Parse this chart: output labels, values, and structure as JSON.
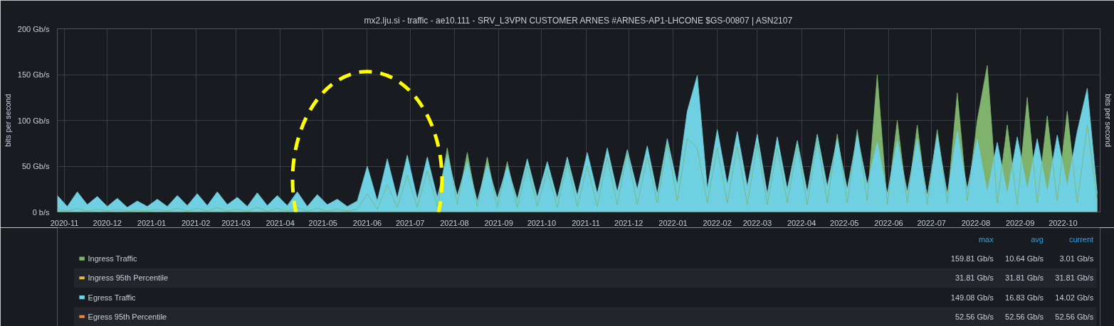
{
  "chart_data": {
    "type": "area",
    "title": "mx2.lju.si - traffic - ae10.111 - SRV_L3VPN CUSTOMER ARNES #ARNES-AP1-LHCONE $GS-00807 | ASN2107",
    "ylabel": "bits per second",
    "y2label": "bits per second",
    "x": [
      "2020-10-27",
      "2020-11-03",
      "2020-11-10",
      "2020-11-17",
      "2020-11-24",
      "2020-12-01",
      "2020-12-08",
      "2020-12-15",
      "2020-12-22",
      "2020-12-29",
      "2021-01-05",
      "2021-01-12",
      "2021-01-19",
      "2021-01-26",
      "2021-02-02",
      "2021-02-09",
      "2021-02-16",
      "2021-02-23",
      "2021-03-02",
      "2021-03-09",
      "2021-03-16",
      "2021-03-23",
      "2021-03-30",
      "2021-04-06",
      "2021-04-13",
      "2021-04-20",
      "2021-04-27",
      "2021-05-04",
      "2021-05-11",
      "2021-05-18",
      "2021-05-25",
      "2021-06-01",
      "2021-06-08",
      "2021-06-15",
      "2021-06-22",
      "2021-06-29",
      "2021-07-06",
      "2021-07-13",
      "2021-07-20",
      "2021-07-27",
      "2021-08-03",
      "2021-08-10",
      "2021-08-17",
      "2021-08-24",
      "2021-08-31",
      "2021-09-07",
      "2021-09-14",
      "2021-09-21",
      "2021-09-28",
      "2021-10-05",
      "2021-10-12",
      "2021-10-19",
      "2021-10-26",
      "2021-11-02",
      "2021-11-09",
      "2021-11-16",
      "2021-11-23",
      "2021-11-30",
      "2021-12-07",
      "2021-12-14",
      "2021-12-21",
      "2021-12-28",
      "2022-01-04",
      "2022-01-11",
      "2022-01-18",
      "2022-01-25",
      "2022-02-01",
      "2022-02-08",
      "2022-02-15",
      "2022-02-22",
      "2022-03-01",
      "2022-03-08",
      "2022-03-15",
      "2022-03-22",
      "2022-03-29",
      "2022-04-05",
      "2022-04-12",
      "2022-04-19",
      "2022-04-26",
      "2022-05-03",
      "2022-05-10",
      "2022-05-17",
      "2022-05-24",
      "2022-05-31",
      "2022-06-07",
      "2022-06-14",
      "2022-06-21",
      "2022-06-28",
      "2022-07-05",
      "2022-07-12",
      "2022-07-19",
      "2022-07-26",
      "2022-08-02",
      "2022-08-09",
      "2022-08-16",
      "2022-08-23",
      "2022-08-30",
      "2022-09-06",
      "2022-09-13",
      "2022-09-20",
      "2022-09-27",
      "2022-10-04",
      "2022-10-11",
      "2022-10-18",
      "2022-10-25"
    ],
    "series": [
      {
        "name": "Ingress Traffic",
        "color": "#7eb26d",
        "values": [
          3,
          1,
          4,
          1,
          3,
          1,
          3,
          1,
          2,
          1,
          3,
          1,
          4,
          1,
          4,
          1,
          5,
          1,
          3,
          1,
          5,
          1,
          4,
          1,
          5,
          1,
          4,
          1,
          3,
          1,
          3,
          20,
          3,
          30,
          5,
          40,
          5,
          45,
          6,
          70,
          8,
          65,
          6,
          60,
          5,
          55,
          5,
          50,
          6,
          45,
          5,
          55,
          6,
          50,
          6,
          60,
          8,
          65,
          8,
          60,
          10,
          75,
          12,
          80,
          70,
          10,
          70,
          10,
          72,
          8,
          75,
          8,
          70,
          10,
          72,
          8,
          80,
          10,
          85,
          10,
          90,
          12,
          150,
          8,
          100,
          10,
          95,
          8,
          90,
          10,
          130,
          12,
          100,
          160,
          10,
          95,
          8,
          125,
          10,
          105,
          12,
          110,
          10,
          95,
          12
        ]
      },
      {
        "name": "Ingress 95th Percentile",
        "color": "#eab839",
        "type": "line",
        "values": [
          null,
          null,
          null,
          null,
          null,
          null,
          null,
          null,
          null,
          null,
          null,
          null,
          null,
          null,
          null,
          null,
          null,
          null,
          null,
          null,
          null,
          null,
          null,
          null,
          null,
          null,
          null,
          null,
          null,
          null,
          null,
          null,
          null,
          null,
          null,
          null,
          null,
          null,
          null,
          null,
          null,
          null,
          null,
          null,
          null,
          null,
          null,
          null,
          null,
          null,
          null,
          null,
          null,
          null,
          null,
          null,
          null,
          null,
          null,
          null,
          null,
          null,
          null,
          null,
          null,
          null,
          null,
          null,
          null,
          null,
          null,
          null,
          null,
          null,
          null,
          null,
          null,
          null,
          null,
          null,
          null,
          null,
          null,
          null,
          null,
          null,
          null,
          null,
          null,
          null,
          null,
          null,
          null,
          null,
          null,
          null,
          null,
          null,
          null,
          null,
          null,
          null,
          null,
          null,
          null
        ]
      },
      {
        "name": "Egress Traffic",
        "color": "#6ed0e0",
        "values": [
          18,
          6,
          22,
          8,
          17,
          6,
          15,
          5,
          12,
          6,
          14,
          6,
          18,
          7,
          20,
          7,
          22,
          8,
          16,
          6,
          21,
          7,
          18,
          7,
          22,
          6,
          19,
          8,
          14,
          6,
          12,
          50,
          12,
          58,
          15,
          62,
          14,
          60,
          16,
          62,
          18,
          55,
          12,
          52,
          15,
          50,
          14,
          58,
          16,
          55,
          15,
          60,
          18,
          65,
          20,
          70,
          22,
          68,
          25,
          72,
          20,
          80,
          30,
          110,
          149,
          25,
          90,
          30,
          88,
          28,
          85,
          20,
          82,
          25,
          78,
          22,
          85,
          28,
          80,
          25,
          84,
          30,
          76,
          20,
          78,
          22,
          80,
          18,
          84,
          20,
          88,
          25,
          80,
          22,
          76,
          20,
          82,
          25,
          80,
          22,
          84,
          28,
          88,
          135,
          20
        ]
      },
      {
        "name": "Egress 95th Percentile",
        "color": "#ef843c",
        "type": "line",
        "values": [
          null,
          null,
          null,
          null,
          null,
          null,
          null,
          null,
          null,
          null,
          null,
          null,
          null,
          null,
          null,
          null,
          null,
          null,
          null,
          null,
          null,
          null,
          null,
          null,
          null,
          null,
          null,
          null,
          null,
          null,
          null,
          null,
          null,
          null,
          null,
          null,
          null,
          null,
          null,
          null,
          null,
          null,
          null,
          null,
          null,
          null,
          null,
          null,
          null,
          null,
          null,
          null,
          null,
          null,
          null,
          null,
          null,
          null,
          null,
          null,
          null,
          null,
          null,
          null,
          null,
          null,
          null,
          null,
          null,
          null,
          null,
          null,
          null,
          null,
          null,
          null,
          null,
          null,
          null,
          null,
          null,
          null,
          null,
          null,
          null,
          null,
          null,
          null,
          null,
          null,
          null,
          null,
          null,
          null,
          null,
          null,
          null,
          null,
          null,
          null,
          null,
          null,
          null,
          null,
          null
        ]
      }
    ],
    "xlim": [
      "2020-10-27",
      "2022-10-27"
    ],
    "xticks": [
      "2020-11",
      "2020-12",
      "2021-01",
      "2021-02",
      "2021-03",
      "2021-04",
      "2021-05",
      "2021-06",
      "2021-07",
      "2021-08",
      "2021-09",
      "2021-10",
      "2021-11",
      "2021-12",
      "2022-01",
      "2022-02",
      "2022-03",
      "2022-04",
      "2022-05",
      "2022-06",
      "2022-07",
      "2022-08",
      "2022-09",
      "2022-10"
    ],
    "ylim": [
      0,
      200
    ],
    "yticks": [
      {
        "value": 0,
        "label": "0 b/s"
      },
      {
        "value": 50,
        "label": "50 Gb/s"
      },
      {
        "value": 100,
        "label": "100 Gb/s"
      },
      {
        "value": 150,
        "label": "150 Gb/s"
      },
      {
        "value": 200,
        "label": "200 Gb/s"
      }
    ],
    "grid": true,
    "legend": "bottom",
    "annotations": [
      "max",
      "avg",
      "current",
      "159.81 Gb/s",
      "10.64 Gb/s",
      "3.01 Gb/s",
      "31.81 Gb/s",
      "31.81 Gb/s",
      "31.81 Gb/s",
      "149.08 Gb/s",
      "16.83 Gb/s",
      "14.02 Gb/s",
      "52.56 Gb/s",
      "52.56 Gb/s",
      "52.56 Gb/s"
    ]
  }
}
